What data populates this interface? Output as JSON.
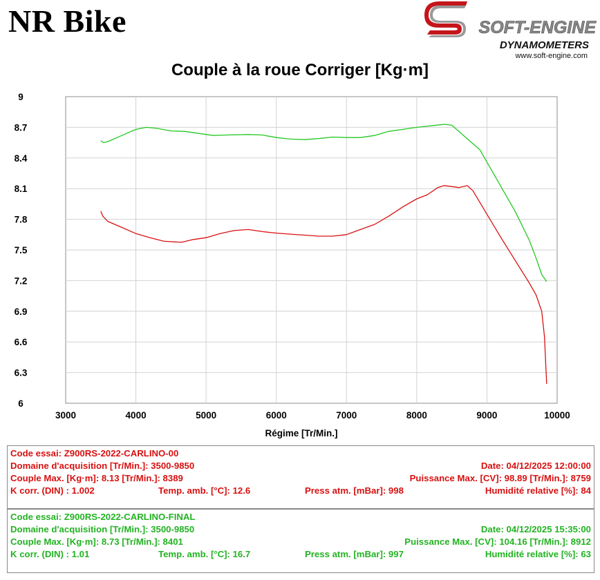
{
  "header": {
    "title": "NR Bike"
  },
  "logo": {
    "main": "SOFT-ENGINE",
    "sub": "DYNAMOMETERS",
    "url": "www.soft-engine.com"
  },
  "chart_data": {
    "type": "line",
    "title": "Couple à la roue Corriger [Kg·m]",
    "xlabel": "Régime [Tr/Min.]",
    "ylabel": "",
    "xlim": [
      3000,
      10000
    ],
    "ylim": [
      6,
      9
    ],
    "xticks": [
      "3000",
      "4000",
      "5000",
      "6000",
      "7000",
      "8000",
      "9000",
      "10000"
    ],
    "yticks": [
      "9",
      "8.7",
      "8.4",
      "8.1",
      "7.8",
      "7.5",
      "7.2",
      "6.9",
      "6.6",
      "6.3",
      "6"
    ],
    "grid": true,
    "series": [
      {
        "name": "Z900RS-2022-CARLINO-00",
        "color": "#d81010",
        "points": [
          [
            3500,
            7.88
          ],
          [
            3530,
            7.83
          ],
          [
            3600,
            7.78
          ],
          [
            3800,
            7.72
          ],
          [
            4000,
            7.66
          ],
          [
            4200,
            7.62
          ],
          [
            4400,
            7.585
          ],
          [
            4650,
            7.575
          ],
          [
            4800,
            7.6
          ],
          [
            5000,
            7.62
          ],
          [
            5200,
            7.66
          ],
          [
            5400,
            7.69
          ],
          [
            5600,
            7.7
          ],
          [
            5800,
            7.68
          ],
          [
            6000,
            7.665
          ],
          [
            6200,
            7.655
          ],
          [
            6400,
            7.645
          ],
          [
            6600,
            7.635
          ],
          [
            6800,
            7.635
          ],
          [
            7000,
            7.65
          ],
          [
            7200,
            7.7
          ],
          [
            7400,
            7.75
          ],
          [
            7600,
            7.83
          ],
          [
            7800,
            7.92
          ],
          [
            8000,
            8.0
          ],
          [
            8150,
            8.04
          ],
          [
            8300,
            8.11
          ],
          [
            8389,
            8.13
          ],
          [
            8500,
            8.12
          ],
          [
            8600,
            8.11
          ],
          [
            8720,
            8.13
          ],
          [
            8800,
            8.08
          ],
          [
            9000,
            7.85
          ],
          [
            9200,
            7.62
          ],
          [
            9400,
            7.4
          ],
          [
            9600,
            7.18
          ],
          [
            9700,
            7.06
          ],
          [
            9780,
            6.9
          ],
          [
            9820,
            6.65
          ],
          [
            9850,
            6.19
          ]
        ]
      },
      {
        "name": "Z900RS-2022-CARLINO-FINAL",
        "color": "#22c822",
        "points": [
          [
            3500,
            8.57
          ],
          [
            3540,
            8.55
          ],
          [
            3600,
            8.56
          ],
          [
            3800,
            8.62
          ],
          [
            4000,
            8.68
          ],
          [
            4150,
            8.7
          ],
          [
            4300,
            8.69
          ],
          [
            4500,
            8.665
          ],
          [
            4700,
            8.66
          ],
          [
            4900,
            8.64
          ],
          [
            5100,
            8.62
          ],
          [
            5300,
            8.625
          ],
          [
            5600,
            8.63
          ],
          [
            5800,
            8.625
          ],
          [
            6000,
            8.6
          ],
          [
            6200,
            8.585
          ],
          [
            6400,
            8.58
          ],
          [
            6600,
            8.59
          ],
          [
            6800,
            8.605
          ],
          [
            7000,
            8.6
          ],
          [
            7200,
            8.6
          ],
          [
            7400,
            8.62
          ],
          [
            7600,
            8.66
          ],
          [
            7800,
            8.68
          ],
          [
            8000,
            8.7
          ],
          [
            8200,
            8.715
          ],
          [
            8401,
            8.73
          ],
          [
            8500,
            8.72
          ],
          [
            8600,
            8.66
          ],
          [
            8750,
            8.57
          ],
          [
            8900,
            8.48
          ],
          [
            9000,
            8.36
          ],
          [
            9200,
            8.12
          ],
          [
            9400,
            7.88
          ],
          [
            9600,
            7.6
          ],
          [
            9700,
            7.42
          ],
          [
            9780,
            7.26
          ],
          [
            9850,
            7.19
          ]
        ]
      }
    ]
  },
  "tests": [
    {
      "code": "Code essai: Z900RS-2022-CARLINO-00",
      "domaine": "Domaine d'acquisition [Tr/Min.]: 3500-9850",
      "date": "Date: 04/12/2025   12:00:00",
      "couple": "Couple Max. [Kg·m]: 8.13   [Tr/Min.]: 8389",
      "puissance": "Puissance Max. [CV]: 98.89   [Tr/Min.]: 8759",
      "kcorr": "K corr. (DIN) : 1.002",
      "temp": "Temp. amb. [°C]: 12.6",
      "press": "Press atm. [mBar]: 998",
      "humid": "Humidité relative [%]: 84"
    },
    {
      "code": "Code essai: Z900RS-2022-CARLINO-FINAL",
      "domaine": "Domaine d'acquisition [Tr/Min.]: 3500-9850",
      "date": "Date: 04/12/2025   15:35:00",
      "couple": "Couple Max. [Kg·m]: 8.73   [Tr/Min.]: 8401",
      "puissance": "Puissance Max. [CV]: 104.16   [Tr/Min.]: 8912",
      "kcorr": "K corr. (DIN) : 1.01",
      "temp": "Temp. amb. [°C]: 16.7",
      "press": "Press atm. [mBar]: 997",
      "humid": "Humidité relative [%]: 63"
    }
  ]
}
